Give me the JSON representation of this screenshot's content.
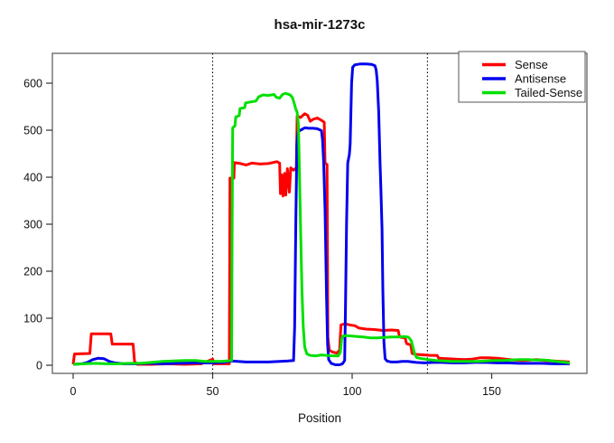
{
  "title": "hsa-mir-1273c",
  "axes": {
    "xlabel": "Position",
    "x_ticks": [
      0,
      50,
      100,
      150
    ],
    "y_ticks": [
      0,
      100,
      200,
      300,
      400,
      500,
      600
    ]
  },
  "markers": {
    "vlines": [
      50,
      127
    ]
  },
  "colors": {
    "sense": "#ff0000",
    "antisense": "#0000ee",
    "tailed": "#00e000",
    "box": "#555555"
  },
  "chart_data": {
    "type": "line",
    "title": "hsa-mir-1273c",
    "xlabel": "Position",
    "ylabel": "",
    "xlim": [
      0,
      184
    ],
    "ylim": [
      0,
      660
    ],
    "x_ticks": [
      0,
      50,
      100,
      150
    ],
    "y_ticks": [
      0,
      100,
      200,
      300,
      400,
      500,
      600
    ],
    "grid": "off",
    "legend_position": "top-right",
    "vertical_dotted_lines_x": [
      50,
      127
    ],
    "series": [
      {
        "name": "Sense",
        "color": "#ff0000",
        "points": [
          [
            0,
            2
          ],
          [
            0.5,
            24
          ],
          [
            6,
            25
          ],
          [
            6.5,
            67
          ],
          [
            13.5,
            67
          ],
          [
            14,
            45
          ],
          [
            21.5,
            45
          ],
          [
            22,
            8
          ],
          [
            23,
            2
          ],
          [
            28,
            2
          ],
          [
            34,
            3
          ],
          [
            40,
            2
          ],
          [
            46,
            3
          ],
          [
            50,
            13
          ],
          [
            50.5,
            3
          ],
          [
            56,
            3
          ],
          [
            56.2,
            398
          ],
          [
            57.6,
            398
          ],
          [
            57.8,
            431
          ],
          [
            60,
            429
          ],
          [
            62,
            426
          ],
          [
            64,
            430
          ],
          [
            67,
            428
          ],
          [
            70,
            429
          ],
          [
            73,
            433
          ],
          [
            74,
            430
          ],
          [
            74.3,
            365
          ],
          [
            74.8,
            405
          ],
          [
            75.2,
            360
          ],
          [
            75.8,
            408
          ],
          [
            76.2,
            362
          ],
          [
            76.8,
            418
          ],
          [
            77.5,
            368
          ],
          [
            78,
            420
          ],
          [
            79,
            415
          ],
          [
            80,
            420
          ],
          [
            80.3,
            530
          ],
          [
            81.5,
            527
          ],
          [
            83,
            535
          ],
          [
            84,
            532
          ],
          [
            85,
            519
          ],
          [
            86,
            523
          ],
          [
            87.5,
            526
          ],
          [
            89,
            521
          ],
          [
            90,
            517
          ],
          [
            90.3,
            430
          ],
          [
            91,
            427
          ],
          [
            91.3,
            60
          ],
          [
            91.8,
            32
          ],
          [
            93,
            28
          ],
          [
            94.5,
            26
          ],
          [
            95.5,
            32
          ],
          [
            96,
            86
          ],
          [
            97.5,
            88
          ],
          [
            99,
            86
          ],
          [
            101,
            84
          ],
          [
            102.5,
            79
          ],
          [
            105,
            77
          ],
          [
            108,
            76
          ],
          [
            111,
            74
          ],
          [
            114,
            75
          ],
          [
            116.5,
            74
          ],
          [
            117,
            60
          ],
          [
            119,
            58
          ],
          [
            119.5,
            46
          ],
          [
            121,
            43
          ],
          [
            121.5,
            25
          ],
          [
            123,
            23
          ],
          [
            126,
            22
          ],
          [
            128,
            21
          ],
          [
            130.5,
            21
          ],
          [
            131,
            15
          ],
          [
            134,
            14
          ],
          [
            137,
            13
          ],
          [
            140,
            12
          ],
          [
            143,
            13
          ],
          [
            146,
            16
          ],
          [
            149,
            16
          ],
          [
            152,
            15
          ],
          [
            155,
            13
          ],
          [
            158,
            11
          ],
          [
            161,
            10
          ],
          [
            164,
            11
          ],
          [
            166,
            12
          ],
          [
            169,
            10
          ],
          [
            172,
            9
          ],
          [
            175,
            8
          ],
          [
            178,
            7
          ]
        ]
      },
      {
        "name": "Antisense",
        "color": "#0000ee",
        "points": [
          [
            0,
            2
          ],
          [
            3,
            3
          ],
          [
            5,
            6
          ],
          [
            7,
            12
          ],
          [
            9,
            15
          ],
          [
            11,
            14
          ],
          [
            13,
            8
          ],
          [
            15,
            5
          ],
          [
            18,
            3
          ],
          [
            22,
            3
          ],
          [
            27,
            4
          ],
          [
            32,
            3
          ],
          [
            38,
            4
          ],
          [
            44,
            5
          ],
          [
            50,
            5
          ],
          [
            54,
            6
          ],
          [
            57,
            9
          ],
          [
            59,
            8
          ],
          [
            62,
            7
          ],
          [
            66,
            7
          ],
          [
            70,
            7
          ],
          [
            74,
            8
          ],
          [
            77,
            9
          ],
          [
            79,
            10
          ],
          [
            79.4,
            80
          ],
          [
            79.8,
            300
          ],
          [
            80.2,
            470
          ],
          [
            80.6,
            497
          ],
          [
            81.5,
            500
          ],
          [
            83,
            505
          ],
          [
            84.5,
            504
          ],
          [
            86,
            504
          ],
          [
            87.5,
            503
          ],
          [
            89,
            499
          ],
          [
            89.4,
            480
          ],
          [
            89.8,
            430
          ],
          [
            90.3,
            330
          ],
          [
            90.8,
            150
          ],
          [
            91.2,
            45
          ],
          [
            91.6,
            12
          ],
          [
            92.5,
            4
          ],
          [
            94,
            1
          ],
          [
            95.5,
            1
          ],
          [
            96.5,
            3
          ],
          [
            97.3,
            10
          ],
          [
            97.6,
            120
          ],
          [
            98,
            300
          ],
          [
            98.4,
            430
          ],
          [
            99,
            448
          ],
          [
            99.3,
            470
          ],
          [
            99.8,
            600
          ],
          [
            100.2,
            634
          ],
          [
            101,
            639
          ],
          [
            103,
            641
          ],
          [
            105,
            641
          ],
          [
            107,
            640
          ],
          [
            108.2,
            637
          ],
          [
            108.6,
            628
          ],
          [
            109,
            605
          ],
          [
            109.5,
            540
          ],
          [
            110,
            430
          ],
          [
            110.3,
            377
          ],
          [
            110.7,
            290
          ],
          [
            111,
            160
          ],
          [
            111.4,
            50
          ],
          [
            111.8,
            14
          ],
          [
            112.5,
            9
          ],
          [
            114,
            7
          ],
          [
            116,
            7
          ],
          [
            118,
            8
          ],
          [
            120,
            8
          ],
          [
            123,
            6
          ],
          [
            126,
            5
          ],
          [
            129,
            6
          ],
          [
            132,
            6
          ],
          [
            136,
            5
          ],
          [
            140,
            5
          ],
          [
            144,
            6
          ],
          [
            148,
            6
          ],
          [
            152,
            5
          ],
          [
            156,
            5
          ],
          [
            160,
            4
          ],
          [
            164,
            4
          ],
          [
            168,
            4
          ],
          [
            172,
            3
          ],
          [
            175,
            3
          ],
          [
            178,
            3
          ]
        ]
      },
      {
        "name": "Tailed-Sense",
        "color": "#00e000",
        "points": [
          [
            0,
            2
          ],
          [
            4,
            3
          ],
          [
            8,
            4
          ],
          [
            12,
            3
          ],
          [
            16,
            3
          ],
          [
            20,
            4
          ],
          [
            24,
            4
          ],
          [
            28,
            6
          ],
          [
            32,
            8
          ],
          [
            36,
            9
          ],
          [
            40,
            10
          ],
          [
            44,
            10
          ],
          [
            47,
            8
          ],
          [
            50,
            8
          ],
          [
            53,
            8
          ],
          [
            55,
            9
          ],
          [
            56.8,
            10
          ],
          [
            57,
            300
          ],
          [
            57.2,
            505
          ],
          [
            58,
            509
          ],
          [
            58.3,
            528
          ],
          [
            59.5,
            531
          ],
          [
            59.8,
            546
          ],
          [
            61.5,
            548
          ],
          [
            61.8,
            558
          ],
          [
            63.5,
            560
          ],
          [
            65.5,
            562
          ],
          [
            66.5,
            571
          ],
          [
            68,
            575
          ],
          [
            70,
            574
          ],
          [
            72,
            576
          ],
          [
            72.8,
            570
          ],
          [
            74,
            568
          ],
          [
            75,
            576
          ],
          [
            76,
            578
          ],
          [
            77,
            577
          ],
          [
            78,
            574
          ],
          [
            78.6,
            569
          ],
          [
            79.2,
            558
          ],
          [
            79.8,
            545
          ],
          [
            80.3,
            538
          ],
          [
            80.7,
            515
          ],
          [
            81,
            440
          ],
          [
            81.5,
            300
          ],
          [
            82,
            160
          ],
          [
            82.5,
            80
          ],
          [
            83,
            38
          ],
          [
            83.8,
            24
          ],
          [
            85,
            21
          ],
          [
            87,
            20
          ],
          [
            89,
            22
          ],
          [
            91,
            21
          ],
          [
            93,
            20
          ],
          [
            95,
            20
          ],
          [
            95.8,
            28
          ],
          [
            96.2,
            55
          ],
          [
            96.6,
            62
          ],
          [
            98,
            63
          ],
          [
            100,
            62
          ],
          [
            102,
            61
          ],
          [
            104,
            60
          ],
          [
            106.5,
            58
          ],
          [
            109,
            58
          ],
          [
            111.5,
            59
          ],
          [
            114,
            60
          ],
          [
            116,
            60
          ],
          [
            118.5,
            61
          ],
          [
            120,
            60
          ],
          [
            120.6,
            57
          ],
          [
            121.2,
            52
          ],
          [
            121.8,
            38
          ],
          [
            122.4,
            24
          ],
          [
            123.2,
            16
          ],
          [
            125,
            14
          ],
          [
            127.5,
            12
          ],
          [
            130,
            10
          ],
          [
            133,
            9
          ],
          [
            136,
            8
          ],
          [
            139,
            8
          ],
          [
            142,
            8
          ],
          [
            145,
            8
          ],
          [
            148,
            9
          ],
          [
            151,
            10
          ],
          [
            154,
            10
          ],
          [
            157,
            11
          ],
          [
            160,
            12
          ],
          [
            163,
            12
          ],
          [
            166,
            11
          ],
          [
            169,
            11
          ],
          [
            171,
            10
          ],
          [
            173,
            8
          ],
          [
            175,
            7
          ],
          [
            178,
            5
          ]
        ]
      }
    ]
  }
}
